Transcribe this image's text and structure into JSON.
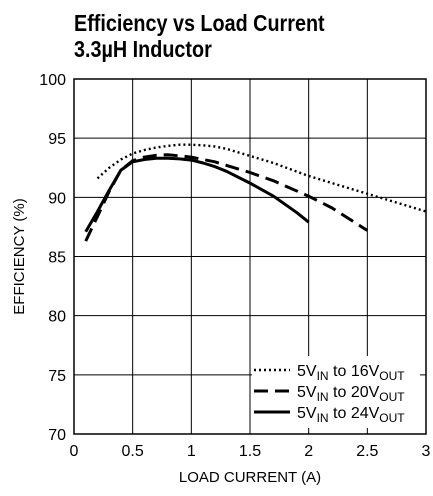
{
  "chart_data": {
    "type": "line",
    "title": "Efficiency vs Load Current",
    "subtitle": "3.3µH Inductor",
    "xlabel": "LOAD CURRENT (A)",
    "ylabel": "EFFICIENCY (%)",
    "xlim": [
      0,
      3
    ],
    "ylim": [
      70,
      100
    ],
    "xticks": [
      "0",
      "0.5",
      "1",
      "1.5",
      "2",
      "2.5",
      "3"
    ],
    "yticks": [
      "70",
      "75",
      "80",
      "85",
      "90",
      "95",
      "100"
    ],
    "grid": true,
    "legend_position": "bottom-right",
    "series": [
      {
        "name_prefix": "5V",
        "name_in_sub": "IN",
        "name_mid": " to 16V",
        "name_out_sub": "OUT",
        "style": "dotted",
        "x": [
          0.2,
          0.3,
          0.4,
          0.5,
          0.6,
          0.7,
          0.8,
          0.9,
          1.0,
          1.1,
          1.2,
          1.3,
          1.4,
          1.5,
          1.7,
          2.0,
          2.3,
          2.6,
          3.0
        ],
        "y": [
          91.6,
          92.5,
          93.2,
          93.7,
          94.0,
          94.2,
          94.35,
          94.45,
          94.45,
          94.4,
          94.3,
          94.1,
          93.8,
          93.5,
          92.9,
          91.8,
          90.9,
          90.0,
          88.8
        ]
      },
      {
        "name_prefix": "5V",
        "name_in_sub": "IN",
        "name_mid": " to 20V",
        "name_out_sub": "OUT",
        "style": "dashed",
        "x": [
          0.1,
          0.2,
          0.3,
          0.4,
          0.5,
          0.6,
          0.7,
          0.8,
          0.9,
          1.0,
          1.1,
          1.2,
          1.3,
          1.5,
          1.7,
          2.0,
          2.2,
          2.5
        ],
        "y": [
          86.3,
          88.4,
          90.5,
          92.3,
          93.1,
          93.4,
          93.55,
          93.6,
          93.5,
          93.4,
          93.2,
          93.0,
          92.7,
          92.1,
          91.4,
          90.1,
          89.1,
          87.2
        ]
      },
      {
        "name_prefix": "5V",
        "name_in_sub": "IN",
        "name_mid": " to 24V",
        "name_out_sub": "OUT",
        "style": "solid",
        "x": [
          0.1,
          0.2,
          0.3,
          0.4,
          0.5,
          0.6,
          0.7,
          0.8,
          0.9,
          1.0,
          1.1,
          1.2,
          1.3,
          1.5,
          1.7,
          1.9,
          2.0
        ],
        "y": [
          87.1,
          88.8,
          90.6,
          92.3,
          93.0,
          93.2,
          93.3,
          93.3,
          93.25,
          93.15,
          92.9,
          92.6,
          92.2,
          91.2,
          90.1,
          88.7,
          87.9
        ]
      }
    ]
  }
}
